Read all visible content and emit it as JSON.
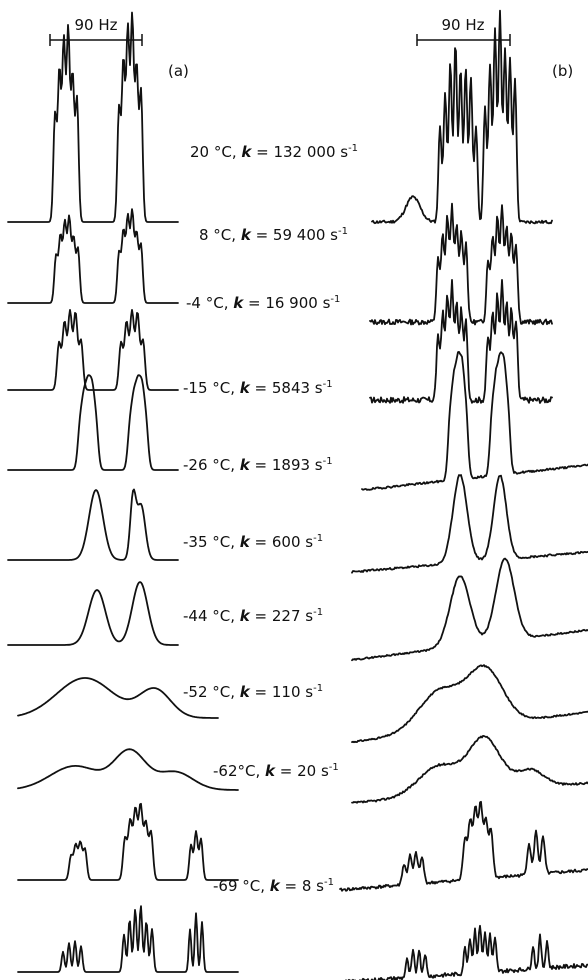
{
  "scale_label": "90 Hz",
  "panels": [
    "(a)",
    "(b)"
  ],
  "spectra": [
    {
      "temp": "20 °C",
      "k": "132 000",
      "unit": "s",
      "exp": "-1"
    },
    {
      "temp": "8 °C",
      "k": "59 400",
      "unit": "s",
      "exp": "-1"
    },
    {
      "temp": "-4 °C",
      "k": "16 900",
      "unit": "s",
      "exp": "-1"
    },
    {
      "temp": "-15 °C",
      "k": "5843",
      "unit": "s",
      "exp": "-1"
    },
    {
      "temp": "-26 °C",
      "k": "1893",
      "unit": "s",
      "exp": "-1"
    },
    {
      "temp": "-35 °C",
      "k": "600",
      "unit": "s",
      "exp": "-1"
    },
    {
      "temp": "-44 °C",
      "k": "227",
      "unit": "s",
      "exp": "-1"
    },
    {
      "temp": "-52 °C",
      "k": "110",
      "unit": "s",
      "exp": "-1"
    },
    {
      "temp": "-62°C",
      "k": "20",
      "unit": "s",
      "exp": "-1"
    },
    {
      "temp": "-69 °C",
      "k": "8",
      "unit": "s",
      "exp": "-1"
    }
  ]
}
